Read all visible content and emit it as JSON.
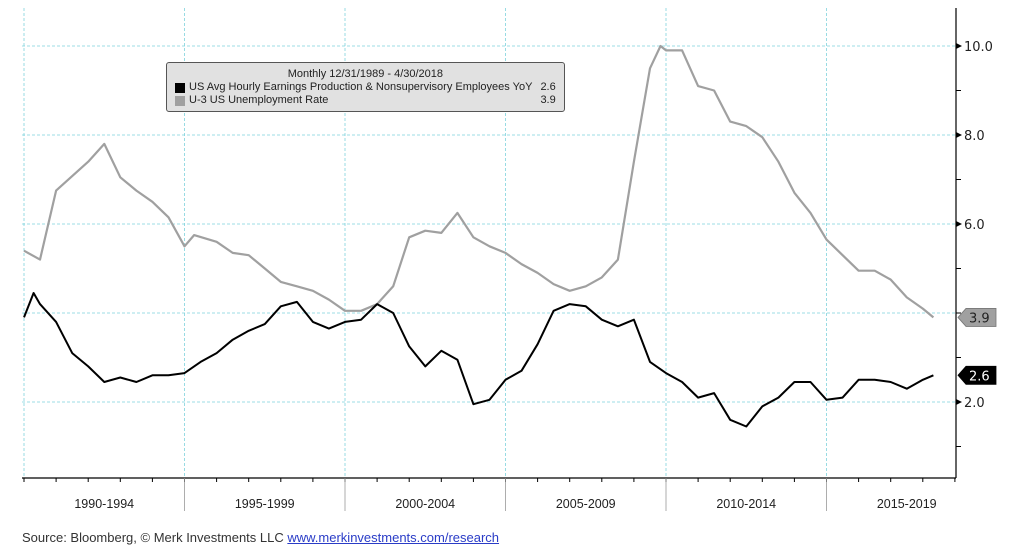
{
  "chart_data": {
    "type": "line",
    "legend": {
      "title": "Monthly 12/31/1989 - 4/30/2018",
      "placement": "top-left"
    },
    "x_categories": [
      "1990-1994",
      "1995-1999",
      "2000-2004",
      "2005-2009",
      "2010-2014",
      "2015-2019"
    ],
    "y_ticks": [
      "10.0",
      "8.0",
      "6.0",
      "2.0"
    ],
    "ylim": [
      0.3,
      10.85
    ],
    "xlim": [
      1989.92,
      2019.0
    ],
    "grid": true,
    "y_axis_side": "right",
    "series": [
      {
        "name": "US Avg Hourly Earnings Production & Nonsupervisory Employees YoY",
        "last_value": "2.6",
        "color": "#000000",
        "x": [
          1990.0,
          1990.3,
          1990.5,
          1991.0,
          1991.5,
          1992.0,
          1992.5,
          1993.0,
          1993.5,
          1994.0,
          1994.5,
          1995.0,
          1995.5,
          1996.0,
          1996.5,
          1997.0,
          1997.5,
          1998.0,
          1998.5,
          1999.0,
          1999.5,
          2000.0,
          2000.5,
          2001.0,
          2001.5,
          2002.0,
          2002.5,
          2003.0,
          2003.5,
          2004.0,
          2004.5,
          2005.0,
          2005.5,
          2006.0,
          2006.5,
          2007.0,
          2007.5,
          2008.0,
          2008.5,
          2009.0,
          2009.5,
          2010.0,
          2010.5,
          2011.0,
          2011.5,
          2012.0,
          2012.5,
          2013.0,
          2013.5,
          2014.0,
          2014.5,
          2015.0,
          2015.5,
          2016.0,
          2016.5,
          2017.0,
          2017.5,
          2018.0,
          2018.33
        ],
        "y": [
          3.9,
          4.45,
          4.2,
          3.8,
          3.1,
          2.8,
          2.45,
          2.55,
          2.45,
          2.6,
          2.6,
          2.65,
          2.9,
          3.1,
          3.4,
          3.6,
          3.75,
          4.15,
          4.25,
          3.8,
          3.65,
          3.8,
          3.85,
          4.2,
          4.0,
          3.25,
          2.8,
          3.15,
          2.95,
          1.95,
          2.05,
          2.5,
          2.7,
          3.3,
          4.05,
          4.2,
          4.15,
          3.85,
          3.7,
          3.85,
          2.9,
          2.65,
          2.45,
          2.1,
          2.2,
          1.6,
          1.45,
          1.9,
          2.1,
          2.45,
          2.45,
          2.05,
          2.1,
          2.5,
          2.5,
          2.45,
          2.3,
          2.5,
          2.6
        ]
      },
      {
        "name": "U-3 US Unemployment Rate",
        "last_value": "3.9",
        "color": "#a0a0a0",
        "x": [
          1990.0,
          1990.5,
          1991.0,
          1992.0,
          1992.5,
          1993.0,
          1993.5,
          1994.0,
          1994.5,
          1995.0,
          1995.3,
          1996.0,
          1996.5,
          1997.0,
          1997.5,
          1998.0,
          1998.5,
          1999.0,
          1999.5,
          2000.0,
          2000.5,
          2001.0,
          2001.5,
          2002.0,
          2002.5,
          2003.0,
          2003.5,
          2004.0,
          2004.5,
          2005.0,
          2005.5,
          2006.0,
          2006.5,
          2007.0,
          2007.5,
          2008.0,
          2008.5,
          2009.0,
          2009.5,
          2009.83,
          2010.0,
          2010.5,
          2011.0,
          2011.5,
          2012.0,
          2012.5,
          2013.0,
          2013.5,
          2014.0,
          2014.5,
          2015.0,
          2015.5,
          2016.0,
          2016.5,
          2017.0,
          2017.5,
          2018.0,
          2018.33
        ],
        "y": [
          5.4,
          5.2,
          6.75,
          7.4,
          7.8,
          7.05,
          6.75,
          6.5,
          6.15,
          5.5,
          5.75,
          5.6,
          5.35,
          5.3,
          5.0,
          4.7,
          4.6,
          4.5,
          4.3,
          4.05,
          4.05,
          4.2,
          4.6,
          5.7,
          5.85,
          5.8,
          6.25,
          5.7,
          5.5,
          5.35,
          5.1,
          4.9,
          4.65,
          4.5,
          4.6,
          4.8,
          5.2,
          7.4,
          9.5,
          10.0,
          9.9,
          9.9,
          9.1,
          9.0,
          8.3,
          8.2,
          7.95,
          7.4,
          6.7,
          6.25,
          5.65,
          5.3,
          4.95,
          4.95,
          4.75,
          4.35,
          4.1,
          3.9
        ]
      }
    ]
  },
  "source": {
    "text": "Source: Bloomberg, © Merk Investments LLC ",
    "link": "www.merkinvestments.com/research"
  }
}
